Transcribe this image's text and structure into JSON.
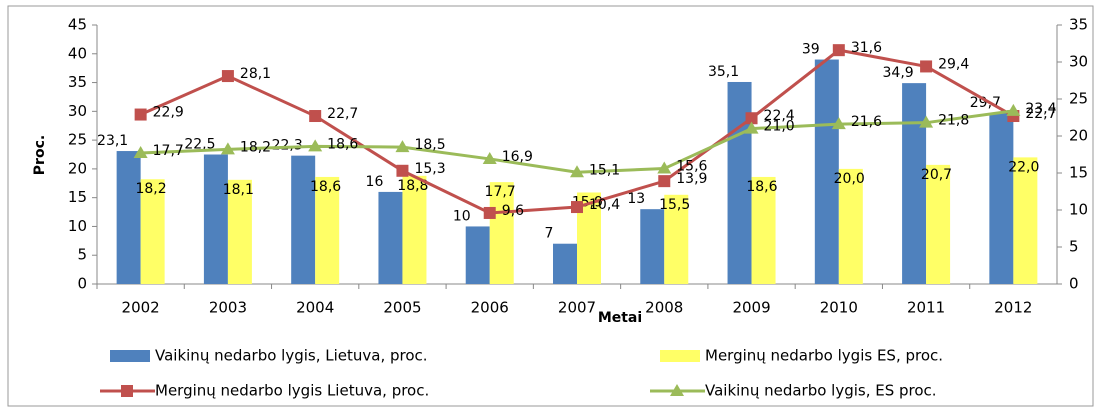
{
  "chart_data": {
    "type": "bar_line",
    "x_label": "Metai",
    "y_label": "Proc.",
    "categories": [
      "2002",
      "2003",
      "2004",
      "2005",
      "2006",
      "2007",
      "2008",
      "2009",
      "2010",
      "2011",
      "2012"
    ],
    "ylim": [
      0,
      45
    ],
    "yticks": [
      0,
      5,
      10,
      15,
      20,
      25,
      30,
      35,
      40,
      45
    ],
    "y2lim": [
      0,
      35
    ],
    "y2ticks": [
      0,
      5,
      10,
      15,
      20,
      25,
      30,
      35
    ],
    "legend": "bottom",
    "series": [
      {
        "name": "Vaikinų nedarbo lygis, Lietuva, proc.",
        "type": "bar",
        "color": "#4f81bd",
        "values": [
          23.1,
          22.5,
          22.3,
          16,
          10,
          7,
          13,
          35.1,
          39,
          34.9,
          29.7
        ],
        "value_labels": [
          "23,1",
          "22,5",
          "22,3",
          "16",
          "10",
          "7",
          "13",
          "35,1",
          "39",
          "34,9",
          "29,7"
        ]
      },
      {
        "name": "Merginų nedarbo lygis ES, proc.",
        "type": "bar",
        "color": "#ffff66",
        "values": [
          18.2,
          18.1,
          18.6,
          18.8,
          17.7,
          15.9,
          15.5,
          18.6,
          20.0,
          20.7,
          22.0
        ],
        "value_labels": [
          "18,2",
          "18,1",
          "18,6",
          "18,8",
          "17,7",
          "15,9",
          "15,5",
          "18,6",
          "20,0",
          "20,7",
          "22,0"
        ]
      },
      {
        "name": "Merginų nedarbo lygis Lietuva, proc.",
        "type": "line",
        "axis": "y2",
        "color": "#c0504d",
        "marker": "square",
        "values": [
          22.9,
          28.1,
          22.7,
          15.3,
          9.6,
          10.4,
          13.9,
          22.4,
          31.6,
          29.4,
          22.7
        ],
        "value_labels": [
          "22,9",
          "28,1",
          "22,7",
          "15,3",
          "9,6",
          "10,4",
          "13,9",
          "22,4",
          "31,6",
          "29,4",
          "22,7"
        ]
      },
      {
        "name": "Vaikinų  nedarbo lygis, ES proc.",
        "type": "line",
        "axis": "y2",
        "color": "#9bbb59",
        "marker": "triangle",
        "values": [
          17.7,
          18.2,
          18.6,
          18.5,
          16.9,
          15.1,
          15.6,
          21.0,
          21.6,
          21.8,
          23.4
        ],
        "value_labels": [
          "17,7",
          "18,2",
          "18,6",
          "18,5",
          "16,9",
          "15,1",
          "15,6",
          "21,0",
          "21,6",
          "21,8",
          "23,4"
        ]
      }
    ]
  }
}
